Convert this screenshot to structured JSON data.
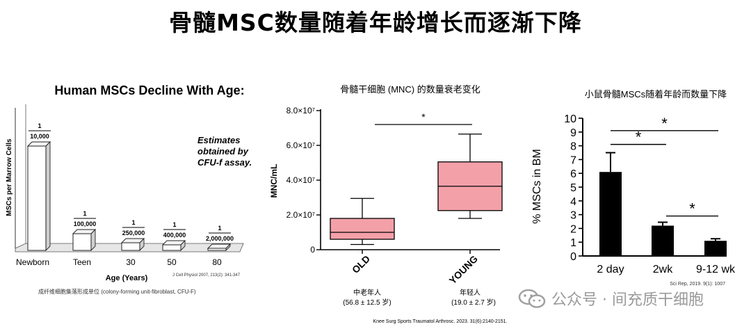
{
  "page": {
    "title": "骨髓MSC数量随着年龄增长而逐渐下降",
    "watermark": "公众号 · 间充质干细胞"
  },
  "panel1": {
    "caption": "成纤维细胞集落形成单位 (colony-forming unit-fibroblast, CFU-F)"
  },
  "panel2": {
    "left_note_line1": "中老年人",
    "left_note_line2": "(56.8 ± 12.5 岁)",
    "right_note_line1": "年轻人",
    "right_note_line2": "(19.0 ± 2.7 岁)"
  },
  "panel3": {},
  "chart_data": [
    {
      "type": "bar",
      "title": "Human MSCs Decline With Age:",
      "xlabel": "Age (Years)",
      "ylabel": "MSCs per Marrow Cells",
      "categories": [
        "Newborn",
        "Teen",
        "30",
        "50",
        "80"
      ],
      "values": [
        0.0001,
        1e-05,
        4e-06,
        2.5e-06,
        5e-07
      ],
      "data_labels": [
        {
          "num": "1",
          "den": "10,000"
        },
        {
          "num": "1",
          "den": "100,000"
        },
        {
          "num": "1",
          "den": "250,000"
        },
        {
          "num": "1",
          "den": "400,000"
        },
        {
          "num": "1",
          "den": "2,000,000"
        }
      ],
      "annotation": [
        "Estimates",
        "obtained by",
        "CFU-f assay."
      ],
      "source": "J Cell Physiol 2007, 213(2): 341-347",
      "style": "3d-bars"
    },
    {
      "type": "box",
      "title": "骨髓干细胞 (MNC) 的数量衰老变化",
      "ylabel": "MNC/mL",
      "ylim": [
        0,
        80000000
      ],
      "yticks": [
        {
          "value": 0,
          "label": "0"
        },
        {
          "value": 20000000,
          "label": "2.0×10⁷"
        },
        {
          "value": 40000000,
          "label": "4.0×10⁷"
        },
        {
          "value": 60000000,
          "label": "6.0×10⁷"
        },
        {
          "value": 80000000,
          "label": "8.0×10⁷"
        }
      ],
      "categories": [
        "OLD",
        "YOUNG"
      ],
      "boxes": [
        {
          "name": "OLD",
          "min": 3000000,
          "q1": 6000000,
          "median": 10000000,
          "q3": 18000000,
          "max": 29500000
        },
        {
          "name": "YOUNG",
          "min": 18000000,
          "q1": 22500000,
          "median": 36500000,
          "q3": 50500000,
          "max": 66500000
        }
      ],
      "significance": [
        {
          "from": "OLD",
          "to": "YOUNG",
          "label": "*",
          "y": 72000000
        }
      ],
      "color": "#f4a0a8",
      "source": "Knee Surg Sports Traumatol Arthrosc. 2023. 31(6):2140-2151."
    },
    {
      "type": "bar",
      "title": "小鼠骨髓MSCs随着年龄而数量下降",
      "ylabel": "% MSCs in BM",
      "ylim": [
        0,
        10
      ],
      "yticks": [
        0,
        1,
        2,
        3,
        4,
        5,
        6,
        7,
        8,
        9,
        10
      ],
      "categories": [
        "2 day",
        "2wk",
        "9-12 wk"
      ],
      "values": [
        6.1,
        2.2,
        1.1
      ],
      "errors": [
        1.4,
        0.25,
        0.15
      ],
      "significance": [
        {
          "from": "2 day",
          "to": "2wk",
          "label": "*",
          "y": 8.1
        },
        {
          "from": "2 day",
          "to": "9-12 wk",
          "label": "*",
          "y": 9.1
        },
        {
          "from": "2wk",
          "to": "9-12 wk",
          "label": "*",
          "y": 2.9
        }
      ],
      "color": "#000000",
      "source": "Sci Rep, 2019. 9(1): 1007"
    }
  ]
}
